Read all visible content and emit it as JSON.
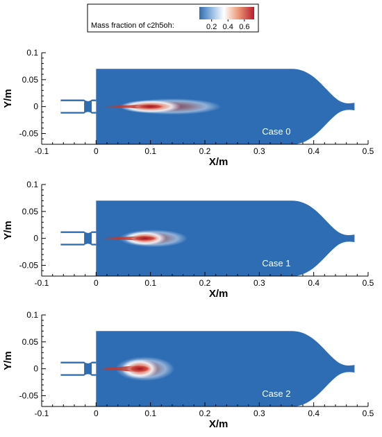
{
  "legend": {
    "label": "Mass fraction of c2h5oh:",
    "ticks": [
      "0.2",
      "0.4",
      "0.6"
    ],
    "tick_values": [
      0.2,
      0.4,
      0.6
    ],
    "range": [
      0.05,
      0.72
    ]
  },
  "chart_data": [
    {
      "type": "heatmap",
      "title": "",
      "xlabel": "X/m",
      "ylabel": "Y/m",
      "xlim": [
        -0.1,
        0.5
      ],
      "ylim": [
        -0.07,
        0.1
      ],
      "xticks": [
        "-0.1",
        "0",
        "0.1",
        "0.2",
        "0.3",
        "0.4",
        "0.5"
      ],
      "yticks": [
        "-0.05",
        "0",
        "0.05",
        "0.1"
      ],
      "annotation": "Case 0",
      "plume": {
        "x_start": 0.0,
        "x_peak": 0.1,
        "x_end": 0.2,
        "max_fraction": 0.7,
        "half_width_max": 0.012
      }
    },
    {
      "type": "heatmap",
      "title": "",
      "xlabel": "X/m",
      "ylabel": "Y/m",
      "xlim": [
        -0.1,
        0.5
      ],
      "ylim": [
        -0.07,
        0.1
      ],
      "xticks": [
        "-0.1",
        "0",
        "0.1",
        "0.2",
        "0.3",
        "0.4",
        "0.5"
      ],
      "yticks": [
        "-0.05",
        "0",
        "0.05",
        "0.1"
      ],
      "annotation": "Case 1",
      "plume": {
        "x_start": 0.0,
        "x_peak": 0.09,
        "x_end": 0.14,
        "max_fraction": 0.7,
        "half_width_max": 0.013
      }
    },
    {
      "type": "heatmap",
      "title": "",
      "xlabel": "X/m",
      "ylabel": "Y/m",
      "xlim": [
        -0.1,
        0.5
      ],
      "ylim": [
        -0.07,
        0.1
      ],
      "xticks": [
        "-0.1",
        "0",
        "0.1",
        "0.2",
        "0.3",
        "0.4",
        "0.5"
      ],
      "yticks": [
        "-0.05",
        "0",
        "0.05",
        "0.1"
      ],
      "annotation": "Case 2",
      "plume": {
        "x_start": 0.0,
        "x_peak": 0.08,
        "x_end": 0.12,
        "max_fraction": 0.7,
        "half_width_max": 0.018
      }
    }
  ],
  "colors": {
    "background_field": "#2e6db4",
    "low": "#2e6db4",
    "mid": "#ffffff",
    "high": "#b51f2c"
  }
}
